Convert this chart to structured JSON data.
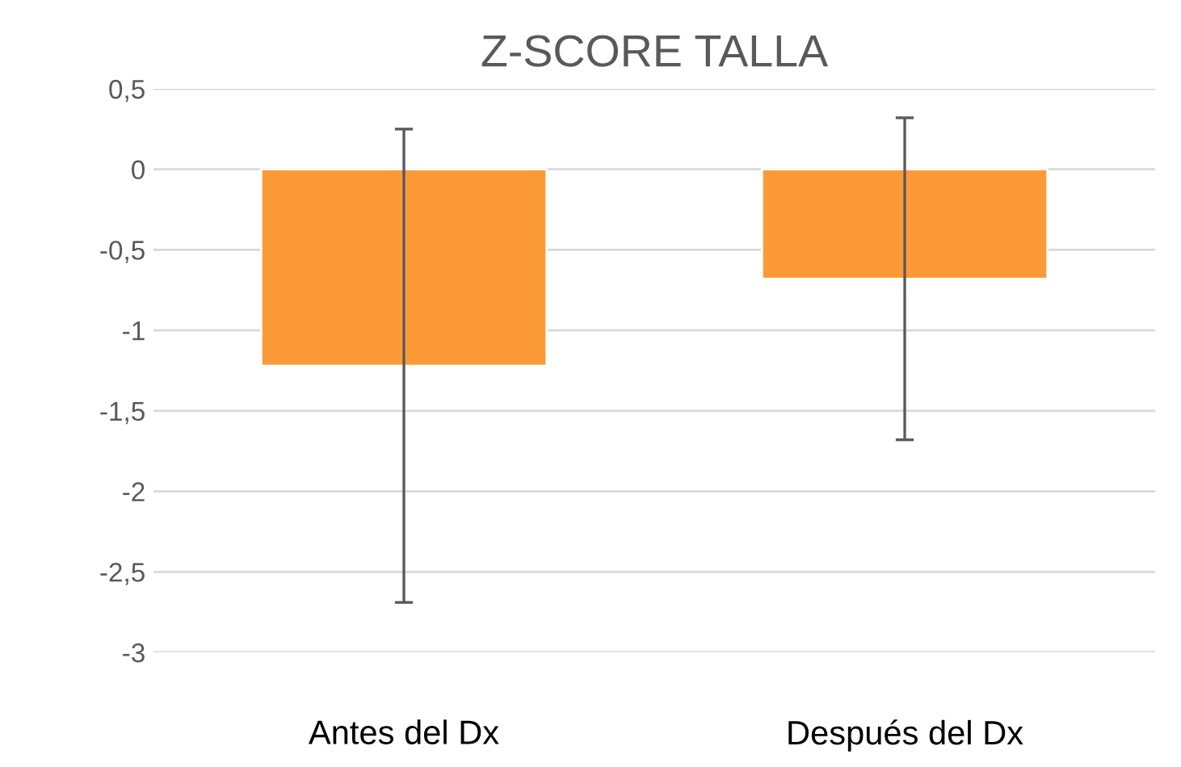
{
  "chart_data": {
    "type": "bar",
    "title": "Z-SCORE TALLA",
    "categories": [
      "Antes del Dx",
      "Después del Dx"
    ],
    "values": [
      -1.22,
      -0.68
    ],
    "errors": [
      1.47,
      1.0
    ],
    "color": "#fd9a38",
    "ylim": [
      -3,
      0.5
    ],
    "yticks": [
      {
        "value": 0.5,
        "label": "0,5"
      },
      0,
      {
        "value": -0.5,
        "label": "-0,5"
      },
      -1,
      {
        "value": -1.5,
        "label": "-1,5"
      },
      -2,
      {
        "value": -2.5,
        "label": "-2,5"
      },
      -3
    ],
    "grid": "y",
    "legend": false
  }
}
